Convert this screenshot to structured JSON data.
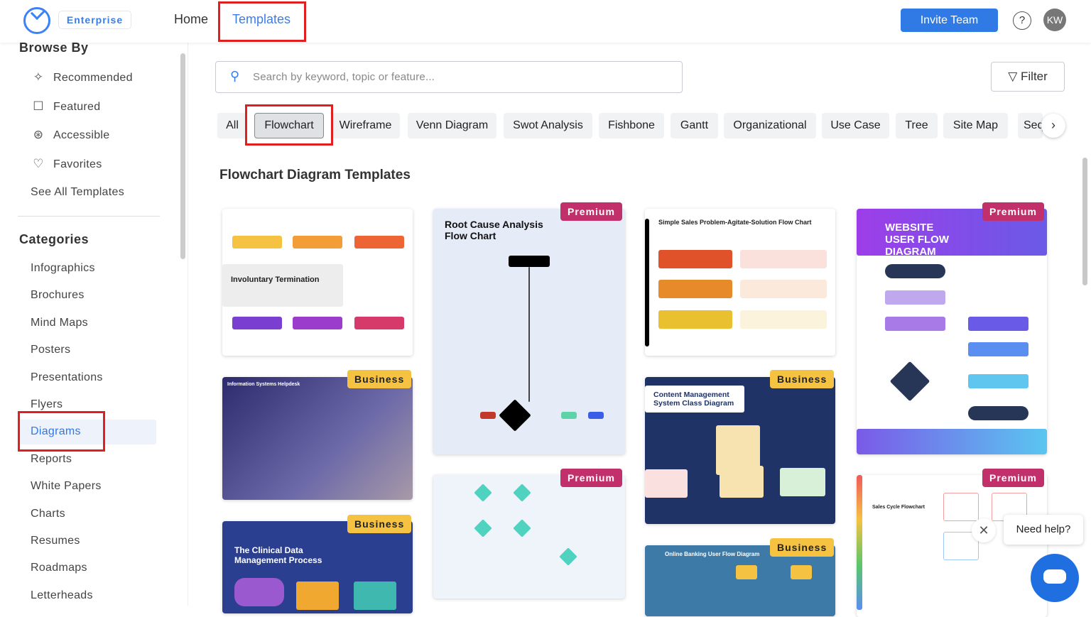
{
  "header": {
    "badge": "Enterprise",
    "nav": [
      "Home",
      "Templates"
    ],
    "invite": "Invite Team",
    "help": "?",
    "avatar": "KW"
  },
  "sidebar": {
    "browse_title": "Browse By",
    "browse": [
      {
        "icon": "sparkles-icon",
        "label": "Recommended",
        "glyph": "✧"
      },
      {
        "icon": "featured-icon",
        "label": "Featured",
        "glyph": "☐"
      },
      {
        "icon": "accessible-icon",
        "label": "Accessible",
        "glyph": "⊛"
      },
      {
        "icon": "heart-icon",
        "label": "Favorites",
        "glyph": "♡"
      }
    ],
    "see_all": "See All Templates",
    "categories_title": "Categories",
    "categories": [
      "Infographics",
      "Brochures",
      "Mind Maps",
      "Posters",
      "Presentations",
      "Flyers",
      "Diagrams",
      "Reports",
      "White Papers",
      "Charts",
      "Resumes",
      "Roadmaps",
      "Letterheads"
    ],
    "selected": "Diagrams"
  },
  "search": {
    "placeholder": "Search by keyword, topic or feature..."
  },
  "filter": "Filter",
  "chips": [
    "All",
    "Flowchart",
    "Wireframe",
    "Venn Diagram",
    "Swot Analysis",
    "Fishbone",
    "Gantt",
    "Organizational",
    "Use Case",
    "Tree",
    "Site Map",
    "Seq"
  ],
  "selected_chip": "Flowchart",
  "section_title": "Flowchart Diagram Templates",
  "templates": [
    {
      "title": "Involuntary Termination",
      "badge": ""
    },
    {
      "title": "Information Systems Helpdesk",
      "badge": "Business"
    },
    {
      "title": "The Clinical Data Management Process",
      "badge": "Business"
    },
    {
      "title": "Root Cause Analysis Flow Chart",
      "badge": "Premium"
    },
    {
      "title": "",
      "badge": "Premium"
    },
    {
      "title": "Simple Sales Problem-Agitate-Solution Flow Chart",
      "badge": ""
    },
    {
      "title": "Content Management System Class Diagram",
      "badge": "Business"
    },
    {
      "title": "Online Banking User Flow Diagram",
      "badge": "Business"
    },
    {
      "title": "WEBSITE USER FLOW DIAGRAM",
      "badge": "Premium"
    },
    {
      "title": "Sales Cycle Flowchart",
      "badge": "Premium"
    }
  ],
  "chat": {
    "prompt": "Need help?",
    "close": "✕"
  },
  "colors": {
    "accent": "#2f7ae5",
    "premium": "#c2306b",
    "business": "#f5c242",
    "highlight": "#e02020"
  }
}
